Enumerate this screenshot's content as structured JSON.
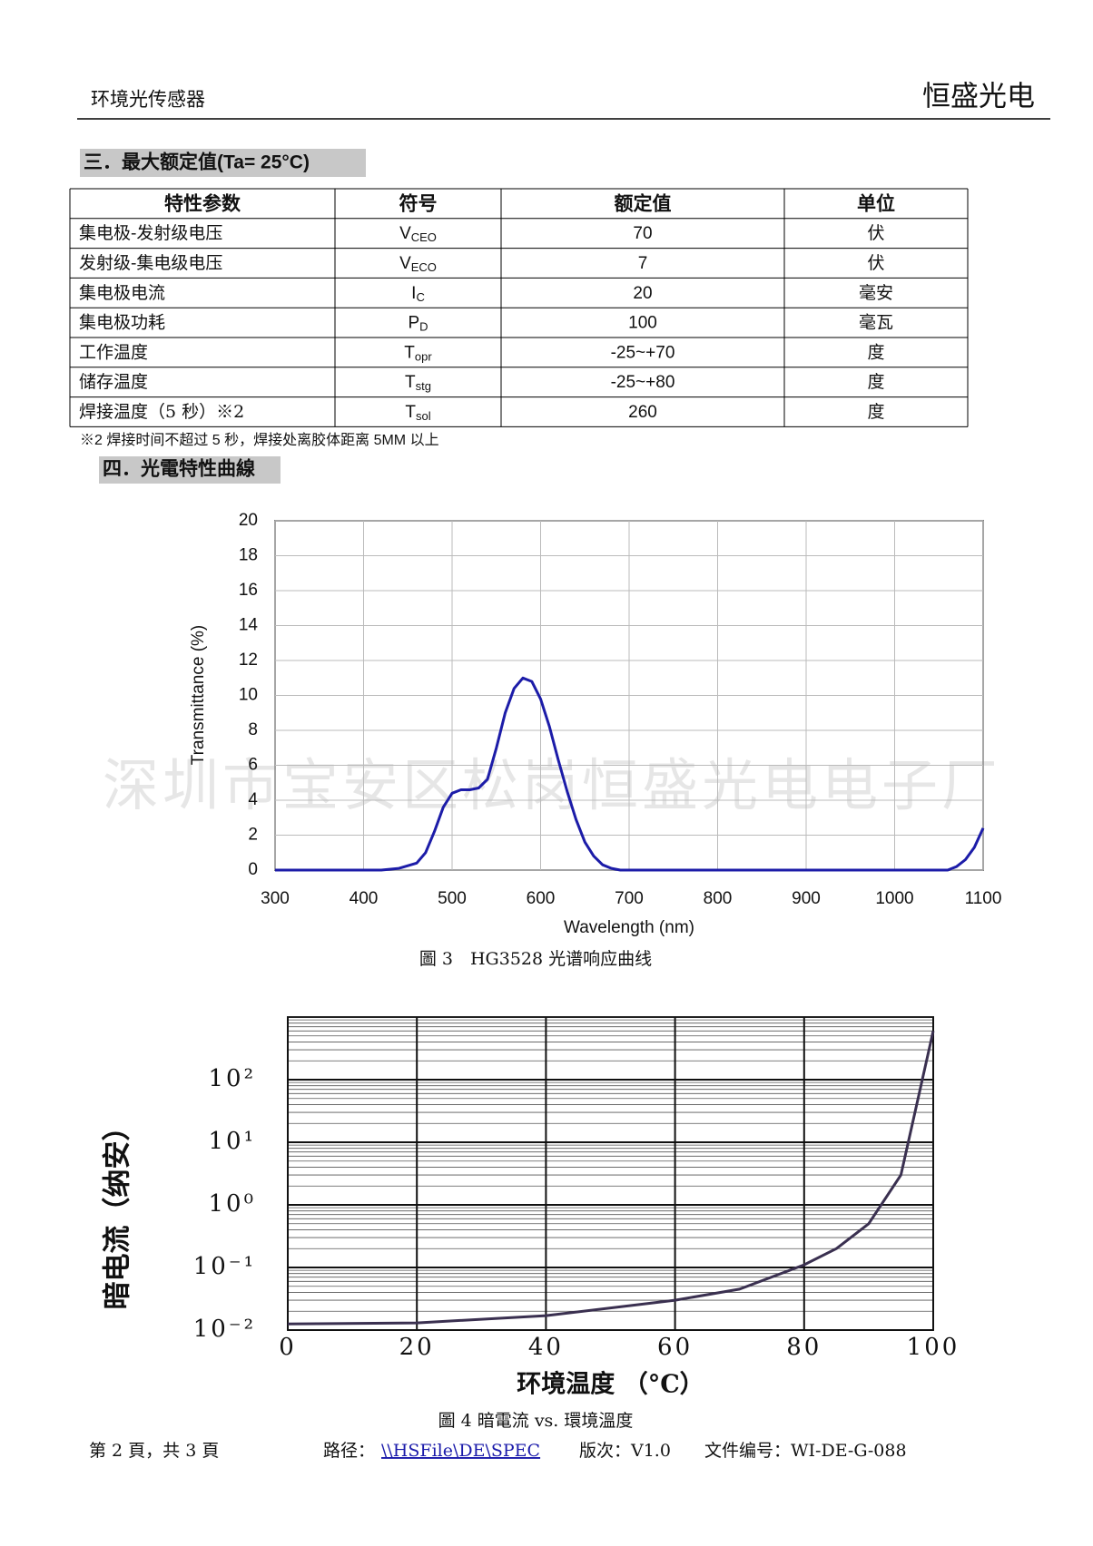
{
  "header": {
    "left": "环境光传感器",
    "right": "恒盛光电"
  },
  "section3": {
    "title": "三．最大额定值(Ta= 25°C)"
  },
  "table": {
    "columns": [
      "特性参数",
      "符号",
      "额定值",
      "单位"
    ],
    "rows": [
      {
        "param": "集电极-发射级电压",
        "symbol": "V",
        "symbol_sub": "CEO",
        "value": "70",
        "unit": "伏"
      },
      {
        "param": "发射级-集电级电压",
        "symbol": "V",
        "symbol_sub": "ECO",
        "value": "7",
        "unit": "伏"
      },
      {
        "param": "集电极电流",
        "symbol": "I",
        "symbol_sub": "C",
        "value": "20",
        "unit": "毫安"
      },
      {
        "param": "集电极功耗",
        "symbol": "P",
        "symbol_sub": "D",
        "value": "100",
        "unit": "毫瓦"
      },
      {
        "param": "工作温度",
        "symbol": "T",
        "symbol_sub": "opr",
        "value": "-25~+70",
        "unit": "度"
      },
      {
        "param": "储存温度",
        "symbol": "T",
        "symbol_sub": "stg",
        "value": "-25~+80",
        "unit": "度"
      },
      {
        "param": "焊接温度（5 秒）※2",
        "symbol": "T",
        "symbol_sub": "sol",
        "value": "260",
        "unit": "度"
      }
    ]
  },
  "note": "※2 焊接时间不超过 5 秒，焊接处离胶体距离 5MM 以上",
  "section4": {
    "title": "四．光電特性曲線"
  },
  "watermark": "深圳市宝安区松岗恒盛光电电子厂",
  "chart_data": [
    {
      "type": "line",
      "caption": "圖 3　HG3528 光谱响应曲线",
      "x_label": "Wavelength (nm)",
      "y_label": "Transmittance (%)",
      "x": [
        300,
        420,
        440,
        460,
        470,
        480,
        490,
        500,
        510,
        520,
        530,
        540,
        550,
        560,
        570,
        580,
        590,
        600,
        610,
        620,
        630,
        640,
        650,
        660,
        670,
        680,
        690,
        700,
        720,
        800,
        900,
        1000,
        1060,
        1070,
        1080,
        1090,
        1100
      ],
      "values": [
        0,
        0,
        0.1,
        0.4,
        1.0,
        2.2,
        3.6,
        4.4,
        4.6,
        4.6,
        4.7,
        5.2,
        7.0,
        9.0,
        10.4,
        11.0,
        10.8,
        9.8,
        8.2,
        6.3,
        4.5,
        2.9,
        1.6,
        0.8,
        0.3,
        0.1,
        0,
        0,
        0,
        0,
        0,
        0,
        0,
        0.2,
        0.6,
        1.3,
        2.4
      ],
      "color": "#1c1ca8",
      "xlim": [
        300,
        1100
      ],
      "ylim": [
        0,
        20
      ],
      "xticks": [
        300,
        400,
        500,
        600,
        700,
        800,
        900,
        1000,
        1100
      ],
      "yticks": [
        0,
        2,
        4,
        6,
        8,
        10,
        12,
        14,
        16,
        18,
        20
      ],
      "grid": true,
      "log_y": false
    },
    {
      "type": "line",
      "caption": "圖 4 暗電流 vs. 環境溫度",
      "x_label": "环境温度 （°C）",
      "y_label": "暗电流（纳安）",
      "x": [
        0,
        20,
        40,
        60,
        70,
        80,
        85,
        90,
        95,
        100
      ],
      "values": [
        0.0125,
        0.013,
        0.017,
        0.03,
        0.045,
        0.11,
        0.2,
        0.5,
        3,
        600
      ],
      "color": "#3a3050",
      "xlim": [
        0,
        100
      ],
      "ylim": [
        0.01,
        1000
      ],
      "xticks": [
        0,
        20,
        40,
        60,
        80,
        100
      ],
      "yticks": [
        {
          "value": 0.01,
          "label": "10⁻²"
        },
        {
          "value": 0.1,
          "label": "10⁻¹"
        },
        {
          "value": 1,
          "label": "10⁰"
        },
        {
          "value": 10,
          "label": "10¹"
        },
        {
          "value": 100,
          "label": "10²"
        }
      ],
      "grid": true,
      "log_y": true
    }
  ],
  "footer": {
    "page": "第 2 頁，共 3 頁",
    "path_label": "路径：",
    "path": "\\\\HSFile\\DE\\SPEC",
    "version": "版次：V1.0",
    "doc_no": "文件编号：WI-DE-G-088"
  }
}
